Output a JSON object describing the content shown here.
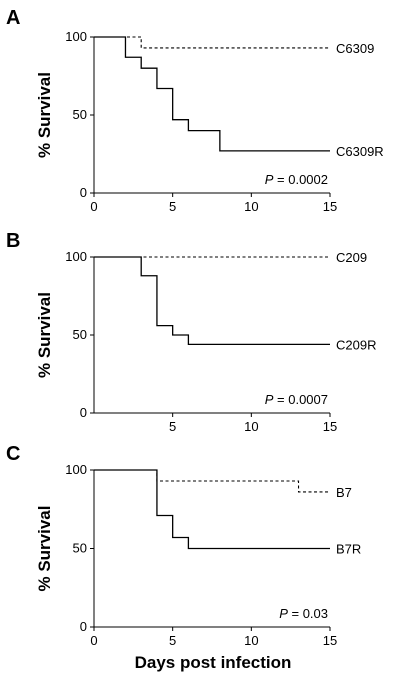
{
  "xlabel": "Days post infection",
  "chart_data": [
    {
      "type": "line",
      "panel": "A",
      "ylabel": "% Survival",
      "xlim": [
        0,
        15
      ],
      "ylim": [
        0,
        100
      ],
      "xticks": [
        "0",
        "5",
        "10",
        "15"
      ],
      "yticks": [
        "0",
        "50",
        "100"
      ],
      "pvalue_prefix": "P",
      "pvalue_text": " = 0.0002",
      "series": [
        {
          "name": "C6309",
          "style": "dashed",
          "x": [
            0,
            3,
            15
          ],
          "y": [
            100,
            93,
            93
          ]
        },
        {
          "name": "C6309R",
          "style": "solid",
          "x": [
            0,
            2,
            3,
            4,
            5,
            6,
            8,
            15
          ],
          "y": [
            100,
            87,
            80,
            67,
            47,
            40,
            27,
            27
          ]
        }
      ]
    },
    {
      "type": "line",
      "panel": "B",
      "ylabel": "% Survival",
      "xlim": [
        0,
        15
      ],
      "ylim": [
        0,
        100
      ],
      "xticks": [
        "5",
        "10",
        "15"
      ],
      "yticks": [
        "0",
        "50",
        "100"
      ],
      "pvalue_prefix": "P",
      "pvalue_text": " = 0.0007",
      "series": [
        {
          "name": "C209",
          "style": "dashed",
          "x": [
            0,
            15
          ],
          "y": [
            100,
            100
          ]
        },
        {
          "name": "C209R",
          "style": "solid",
          "x": [
            0,
            3,
            4,
            5,
            6,
            15
          ],
          "y": [
            100,
            88,
            56,
            50,
            44,
            44
          ]
        }
      ]
    },
    {
      "type": "line",
      "panel": "C",
      "ylabel": "% Survival",
      "xlim": [
        0,
        15
      ],
      "ylim": [
        0,
        100
      ],
      "xticks": [
        "0",
        "5",
        "10",
        "15"
      ],
      "yticks": [
        "0",
        "50",
        "100"
      ],
      "pvalue_prefix": "P",
      "pvalue_text": " = 0.03",
      "series": [
        {
          "name": "B7",
          "style": "dashed",
          "x": [
            0,
            4,
            13,
            15
          ],
          "y": [
            100,
            93,
            86,
            86
          ]
        },
        {
          "name": "B7R",
          "style": "solid",
          "x": [
            0,
            4,
            5,
            6,
            15
          ],
          "y": [
            100,
            71,
            57,
            50,
            50
          ]
        }
      ]
    }
  ]
}
